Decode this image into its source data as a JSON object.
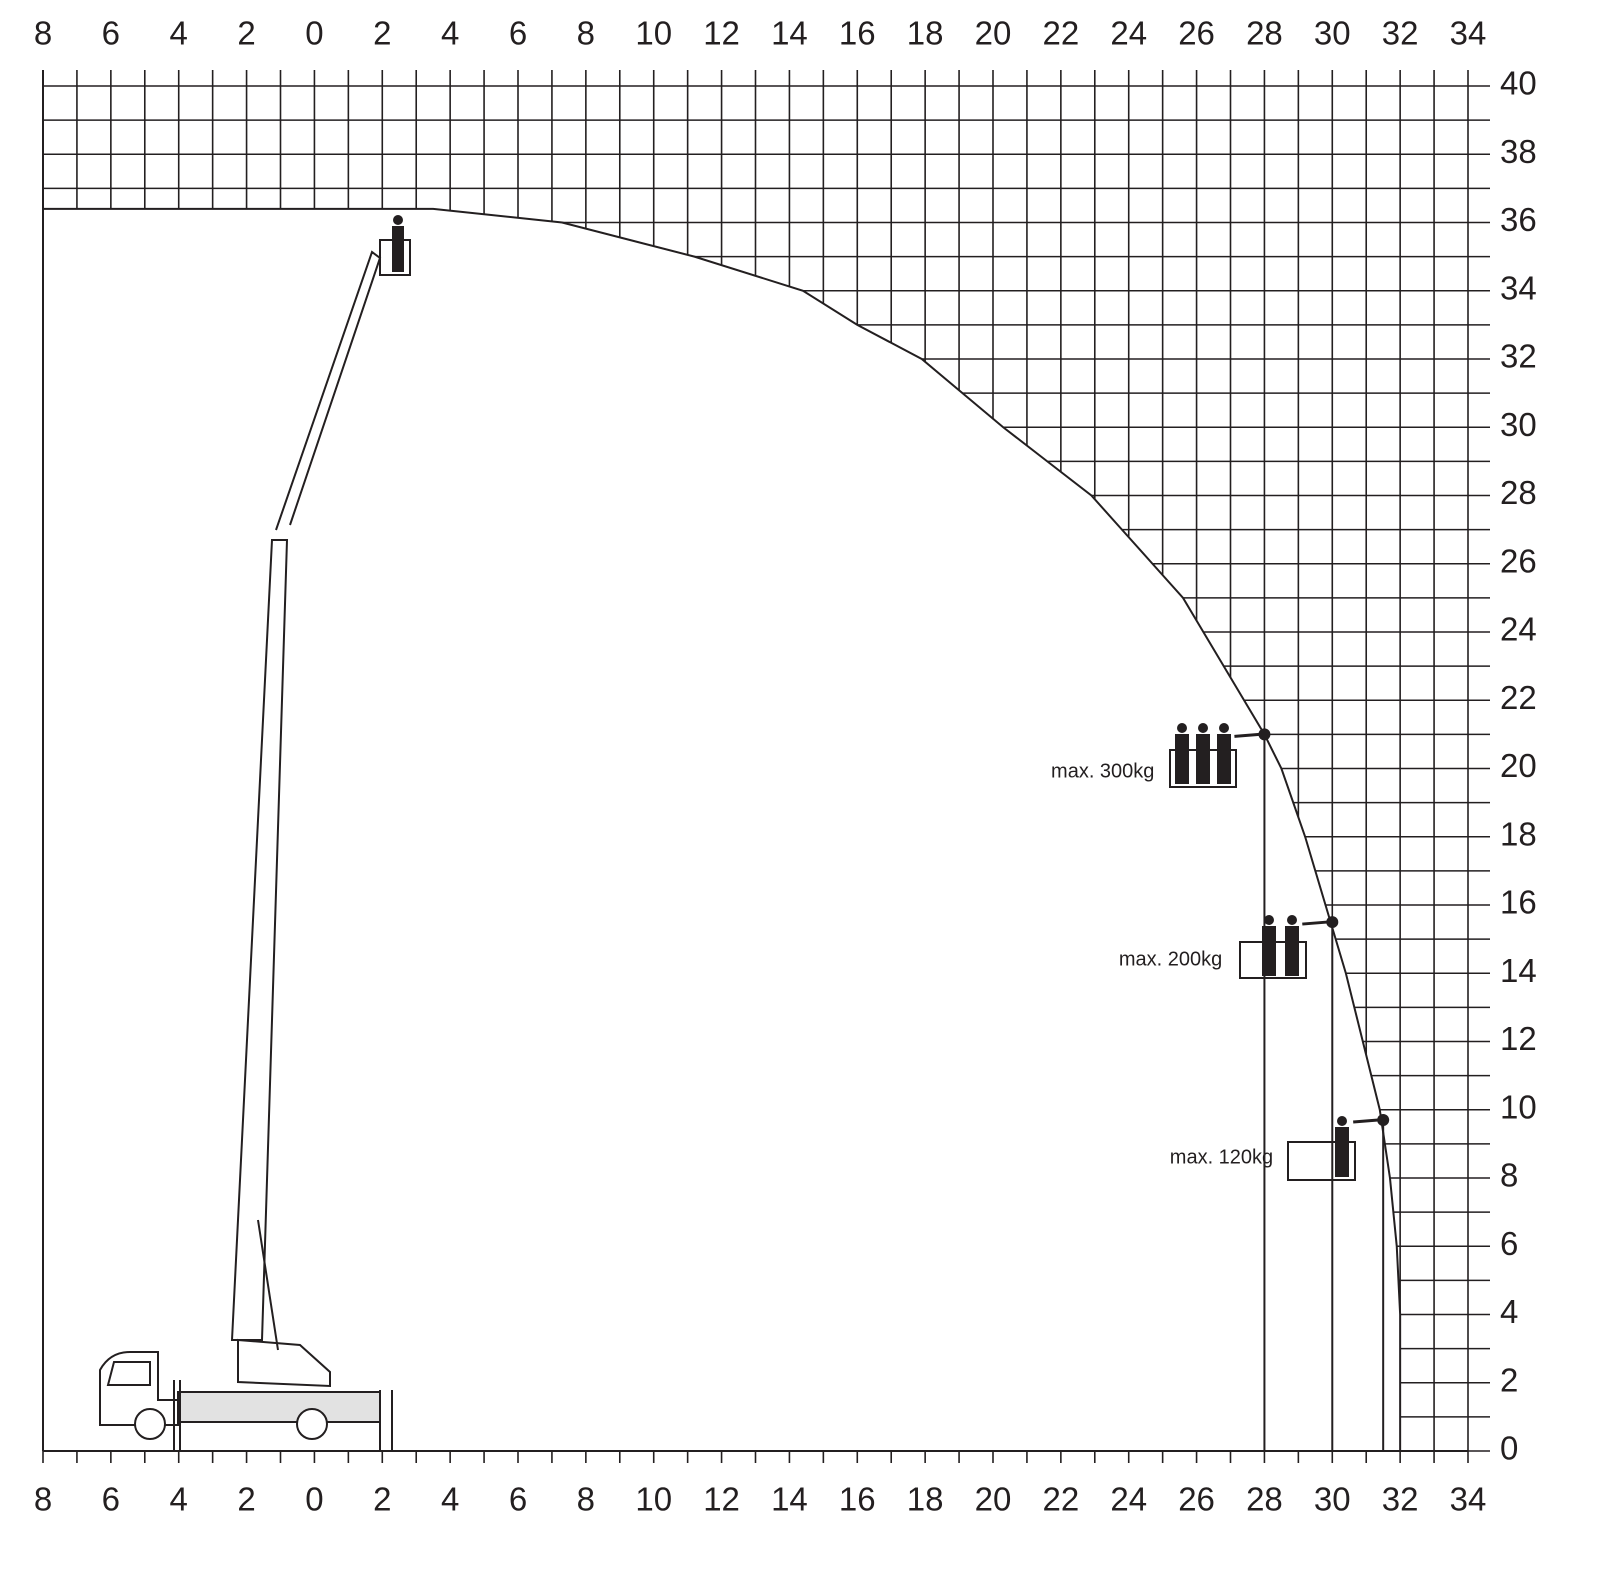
{
  "chart_data": {
    "type": "line",
    "xlim": [
      -8,
      34
    ],
    "ylim": [
      0,
      40
    ],
    "xticks": [
      {
        "value": -8,
        "label": "8"
      },
      {
        "value": -6,
        "label": "6"
      },
      {
        "value": -4,
        "label": "4"
      },
      {
        "value": -2,
        "label": "2"
      },
      0,
      2,
      4,
      6,
      8,
      10,
      12,
      14,
      16,
      18,
      20,
      22,
      24,
      26,
      28,
      30,
      32,
      34
    ],
    "yticks": [
      0,
      2,
      4,
      6,
      8,
      10,
      12,
      14,
      16,
      18,
      20,
      22,
      24,
      26,
      28,
      30,
      32,
      34,
      36,
      38,
      40
    ],
    "grid": true,
    "series": [
      {
        "color": "#231f20",
        "x": [
          -8,
          3.5,
          7.3,
          11.2,
          14.4,
          16,
          17.9,
          19.1,
          20.3,
          21.6,
          22.9,
          23.8,
          24.7,
          25.6,
          26.2,
          26.8,
          27.4,
          28,
          28.5,
          29.2,
          29.8,
          30.4,
          30.9,
          31.4,
          31.7,
          31.9,
          32,
          32
        ],
        "values": [
          36.4,
          36.4,
          36,
          35,
          34,
          33,
          32,
          31,
          30,
          29,
          28,
          27,
          26,
          25,
          24,
          23,
          22,
          21,
          20,
          18,
          16,
          14,
          12,
          10,
          8,
          6,
          4,
          0
        ]
      }
    ],
    "load_points": [
      {
        "label": "max. 300kg",
        "x": 28,
        "y": 21
      },
      {
        "label": "max. 200kg",
        "x": 30,
        "y": 15.5
      },
      {
        "label": "max. 120kg",
        "x": 31.5,
        "y": 9.7
      }
    ]
  }
}
